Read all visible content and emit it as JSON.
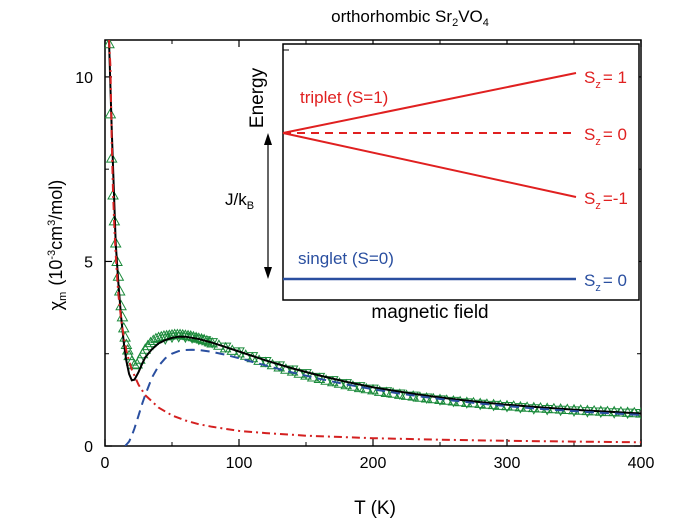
{
  "chart_data": {
    "type": "scatter",
    "title": "orthorhombic Sr",
    "title_sub": "2",
    "title_mid": "VO",
    "title_sub2": "4",
    "xlabel": "T (K)",
    "ylabel_main": "χ",
    "ylabel_sub": "m",
    "ylabel_rest": "(10",
    "ylabel_sup": "-3",
    "ylabel_tail": "cm",
    "ylabel_sup2": "3",
    "ylabel_end": "/mol)",
    "xlim": [
      0,
      400
    ],
    "ylim": [
      0,
      11
    ],
    "x_ticks": [
      "0",
      "100",
      "200",
      "300",
      "400"
    ],
    "y_ticks": [
      "0",
      "5",
      "10"
    ],
    "grid": false,
    "colors": {
      "data_markers": "#1a8a3a",
      "fit_total": "#000000",
      "dimer_component": "#2a4fa0",
      "curie_component": "#d42020",
      "axes": "#000000",
      "inset_red": "#e02020",
      "inset_blue": "#2a4fa0"
    },
    "series": [
      {
        "marker": "triangle-up",
        "style": "open-markers",
        "x": [
          3,
          4,
          5,
          6,
          7,
          8,
          9,
          10,
          11,
          12,
          13,
          14,
          15,
          16,
          17,
          18,
          20,
          22,
          24,
          26,
          28,
          30,
          32,
          34,
          36,
          38,
          40,
          42,
          44,
          46,
          48,
          50,
          52,
          54,
          56,
          58,
          60,
          62,
          64,
          66,
          68,
          70,
          72,
          74,
          76,
          78,
          80,
          85,
          90,
          95,
          100,
          105,
          110,
          115,
          120,
          125,
          130,
          135,
          140,
          145,
          150,
          155,
          160,
          165,
          170,
          175,
          180,
          185,
          190,
          195,
          200,
          205,
          210,
          215,
          220,
          225,
          230,
          235,
          240,
          245,
          250,
          255,
          260,
          265,
          270,
          275,
          280,
          285,
          290,
          295,
          300,
          305,
          310,
          315,
          320,
          325,
          330,
          335,
          340,
          345,
          350,
          355,
          360,
          365,
          370,
          375,
          380,
          385,
          390,
          395,
          400
        ],
        "y": [
          10.9,
          9.0,
          7.8,
          6.8,
          6.1,
          5.5,
          5.0,
          4.6,
          4.2,
          3.8,
          3.5,
          3.2,
          2.95,
          2.75,
          2.6,
          2.45,
          2.3,
          2.2,
          2.22,
          2.35,
          2.5,
          2.62,
          2.72,
          2.8,
          2.86,
          2.91,
          2.94,
          2.96,
          2.98,
          2.99,
          3.0,
          3.01,
          3.02,
          3.02,
          3.02,
          3.01,
          3.0,
          2.99,
          2.98,
          2.96,
          2.94,
          2.92,
          2.9,
          2.88,
          2.85,
          2.82,
          2.79,
          2.73,
          2.66,
          2.59,
          2.52,
          2.46,
          2.39,
          2.32,
          2.26,
          2.2,
          2.14,
          2.08,
          2.03,
          1.97,
          1.92,
          1.87,
          1.83,
          1.78,
          1.74,
          1.7,
          1.66,
          1.62,
          1.58,
          1.55,
          1.52,
          1.48,
          1.45,
          1.43,
          1.4,
          1.37,
          1.35,
          1.32,
          1.3,
          1.28,
          1.26,
          1.24,
          1.22,
          1.2,
          1.18,
          1.17,
          1.15,
          1.13,
          1.12,
          1.1,
          1.09,
          1.08,
          1.06,
          1.05,
          1.04,
          1.03,
          1.02,
          1.01,
          1.0,
          0.99,
          0.98,
          0.97,
          0.96,
          0.95,
          0.94,
          0.93,
          0.93,
          0.92,
          0.91,
          0.9,
          0.89
        ]
      },
      {
        "marker": "triangle-down",
        "style": "open-markers",
        "x": [
          45,
          50,
          55,
          60,
          65,
          70,
          75,
          80,
          90,
          100,
          110,
          120,
          130,
          140,
          150,
          160,
          170,
          180,
          190,
          200,
          210,
          220,
          230,
          240,
          250,
          260,
          270,
          280,
          290,
          300,
          310,
          320,
          330,
          340,
          350,
          360,
          370,
          380,
          390,
          400
        ],
        "y": [
          2.9,
          2.95,
          2.96,
          2.95,
          2.93,
          2.89,
          2.85,
          2.8,
          2.68,
          2.55,
          2.42,
          2.29,
          2.17,
          2.06,
          1.96,
          1.86,
          1.77,
          1.69,
          1.61,
          1.54,
          1.47,
          1.41,
          1.35,
          1.3,
          1.25,
          1.21,
          1.17,
          1.13,
          1.1,
          1.07,
          1.04,
          1.01,
          0.99,
          0.97,
          0.95,
          0.93,
          0.92,
          0.9,
          0.89,
          0.88
        ]
      },
      {
        "line": "solid",
        "x": [
          3,
          5,
          8,
          10,
          12,
          14,
          16,
          18,
          20,
          22,
          25,
          28,
          30,
          35,
          40,
          45,
          50,
          55,
          60,
          70,
          80,
          90,
          100,
          120,
          140,
          160,
          180,
          200,
          220,
          240,
          260,
          280,
          300,
          320,
          340,
          360,
          380,
          400
        ],
        "y": [
          11.0,
          8.6,
          5.5,
          4.4,
          3.5,
          2.8,
          2.3,
          1.95,
          1.78,
          1.8,
          2.0,
          2.25,
          2.4,
          2.62,
          2.78,
          2.87,
          2.93,
          2.96,
          2.96,
          2.9,
          2.8,
          2.68,
          2.56,
          2.32,
          2.1,
          1.91,
          1.74,
          1.59,
          1.47,
          1.36,
          1.27,
          1.19,
          1.12,
          1.06,
          1.01,
          0.96,
          0.92,
          0.88
        ]
      },
      {
        "line": "dashed",
        "x": [
          15,
          18,
          20,
          22,
          25,
          28,
          30,
          35,
          40,
          45,
          50,
          55,
          60,
          65,
          70,
          80,
          90,
          100,
          120,
          140,
          160,
          180,
          200,
          220,
          240,
          260,
          280,
          300,
          320,
          340,
          360,
          380,
          400
        ],
        "y": [
          0.0,
          0.12,
          0.28,
          0.48,
          0.82,
          1.17,
          1.38,
          1.85,
          2.17,
          2.38,
          2.5,
          2.57,
          2.6,
          2.61,
          2.6,
          2.55,
          2.47,
          2.38,
          2.18,
          1.99,
          1.82,
          1.67,
          1.54,
          1.42,
          1.32,
          1.23,
          1.15,
          1.08,
          1.02,
          0.97,
          0.92,
          0.88,
          0.84
        ]
      },
      {
        "line": "dash-dot",
        "x": [
          3,
          4,
          5,
          6,
          7,
          8,
          9,
          10,
          12,
          14,
          16,
          18,
          20,
          25,
          30,
          40,
          50,
          60,
          70,
          80,
          100,
          120,
          150,
          200,
          250,
          300,
          350,
          400
        ],
        "y": [
          11.0,
          10.3,
          8.3,
          6.9,
          5.9,
          5.2,
          4.6,
          4.1,
          3.45,
          2.95,
          2.58,
          2.3,
          2.07,
          1.66,
          1.38,
          1.04,
          0.83,
          0.69,
          0.59,
          0.52,
          0.41,
          0.35,
          0.28,
          0.21,
          0.17,
          0.14,
          0.12,
          0.1
        ]
      }
    ]
  },
  "inset": {
    "ylabel": "Energy",
    "xlabel": "magnetic field",
    "triplet_label": "triplet (S=1)",
    "singlet_label": "singlet (S=0)",
    "gap_label": "J/k",
    "gap_label_sub": "B",
    "sz_plus": {
      "main": "S",
      "sub": "z",
      "value": "= 1"
    },
    "sz_zero_triplet": {
      "main": "S",
      "sub": "z",
      "value": "= 0"
    },
    "sz_minus": {
      "main": "S",
      "sub": "z",
      "value": "=-1"
    },
    "sz_zero_singlet": {
      "main": "S",
      "sub": "z",
      "value": "= 0"
    }
  }
}
